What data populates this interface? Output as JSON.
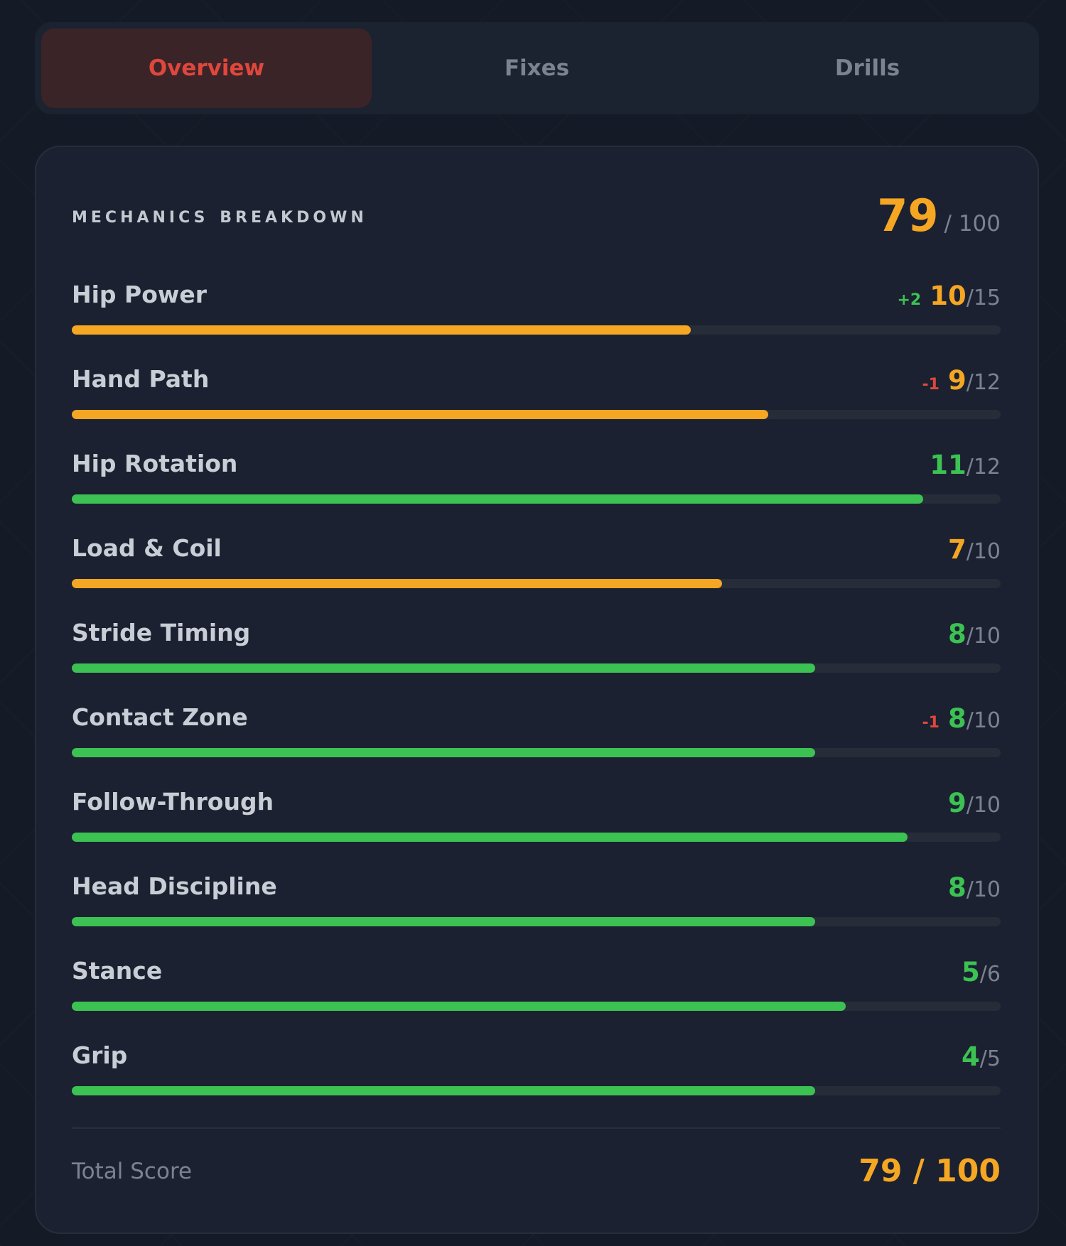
{
  "tabs": [
    {
      "label": "Overview",
      "active": true
    },
    {
      "label": "Fixes",
      "active": false
    },
    {
      "label": "Drills",
      "active": false
    }
  ],
  "card": {
    "title": "Mechanics Breakdown",
    "score": "79",
    "score_max": "/ 100"
  },
  "colors": {
    "orange": "#f5a623",
    "green": "#3cc253",
    "red": "#e0473c"
  },
  "metrics": [
    {
      "label": "Hip Power",
      "delta": "+2",
      "value": 10,
      "max": 15,
      "max_text": "/15",
      "status": "orange"
    },
    {
      "label": "Hand Path",
      "delta": "-1",
      "value": 9,
      "max": 12,
      "max_text": "/12",
      "status": "orange"
    },
    {
      "label": "Hip Rotation",
      "delta": "",
      "value": 11,
      "max": 12,
      "max_text": "/12",
      "status": "green"
    },
    {
      "label": "Load & Coil",
      "delta": "",
      "value": 7,
      "max": 10,
      "max_text": "/10",
      "status": "orange"
    },
    {
      "label": "Stride Timing",
      "delta": "",
      "value": 8,
      "max": 10,
      "max_text": "/10",
      "status": "green"
    },
    {
      "label": "Contact Zone",
      "delta": "-1",
      "value": 8,
      "max": 10,
      "max_text": "/10",
      "status": "green"
    },
    {
      "label": "Follow-Through",
      "delta": "",
      "value": 9,
      "max": 10,
      "max_text": "/10",
      "status": "green"
    },
    {
      "label": "Head Discipline",
      "delta": "",
      "value": 8,
      "max": 10,
      "max_text": "/10",
      "status": "green"
    },
    {
      "label": "Stance",
      "delta": "",
      "value": 5,
      "max": 6,
      "max_text": "/6",
      "status": "green"
    },
    {
      "label": "Grip",
      "delta": "",
      "value": 4,
      "max": 5,
      "max_text": "/5",
      "status": "green"
    }
  ],
  "total": {
    "label": "Total Score",
    "value": "79 / 100"
  }
}
